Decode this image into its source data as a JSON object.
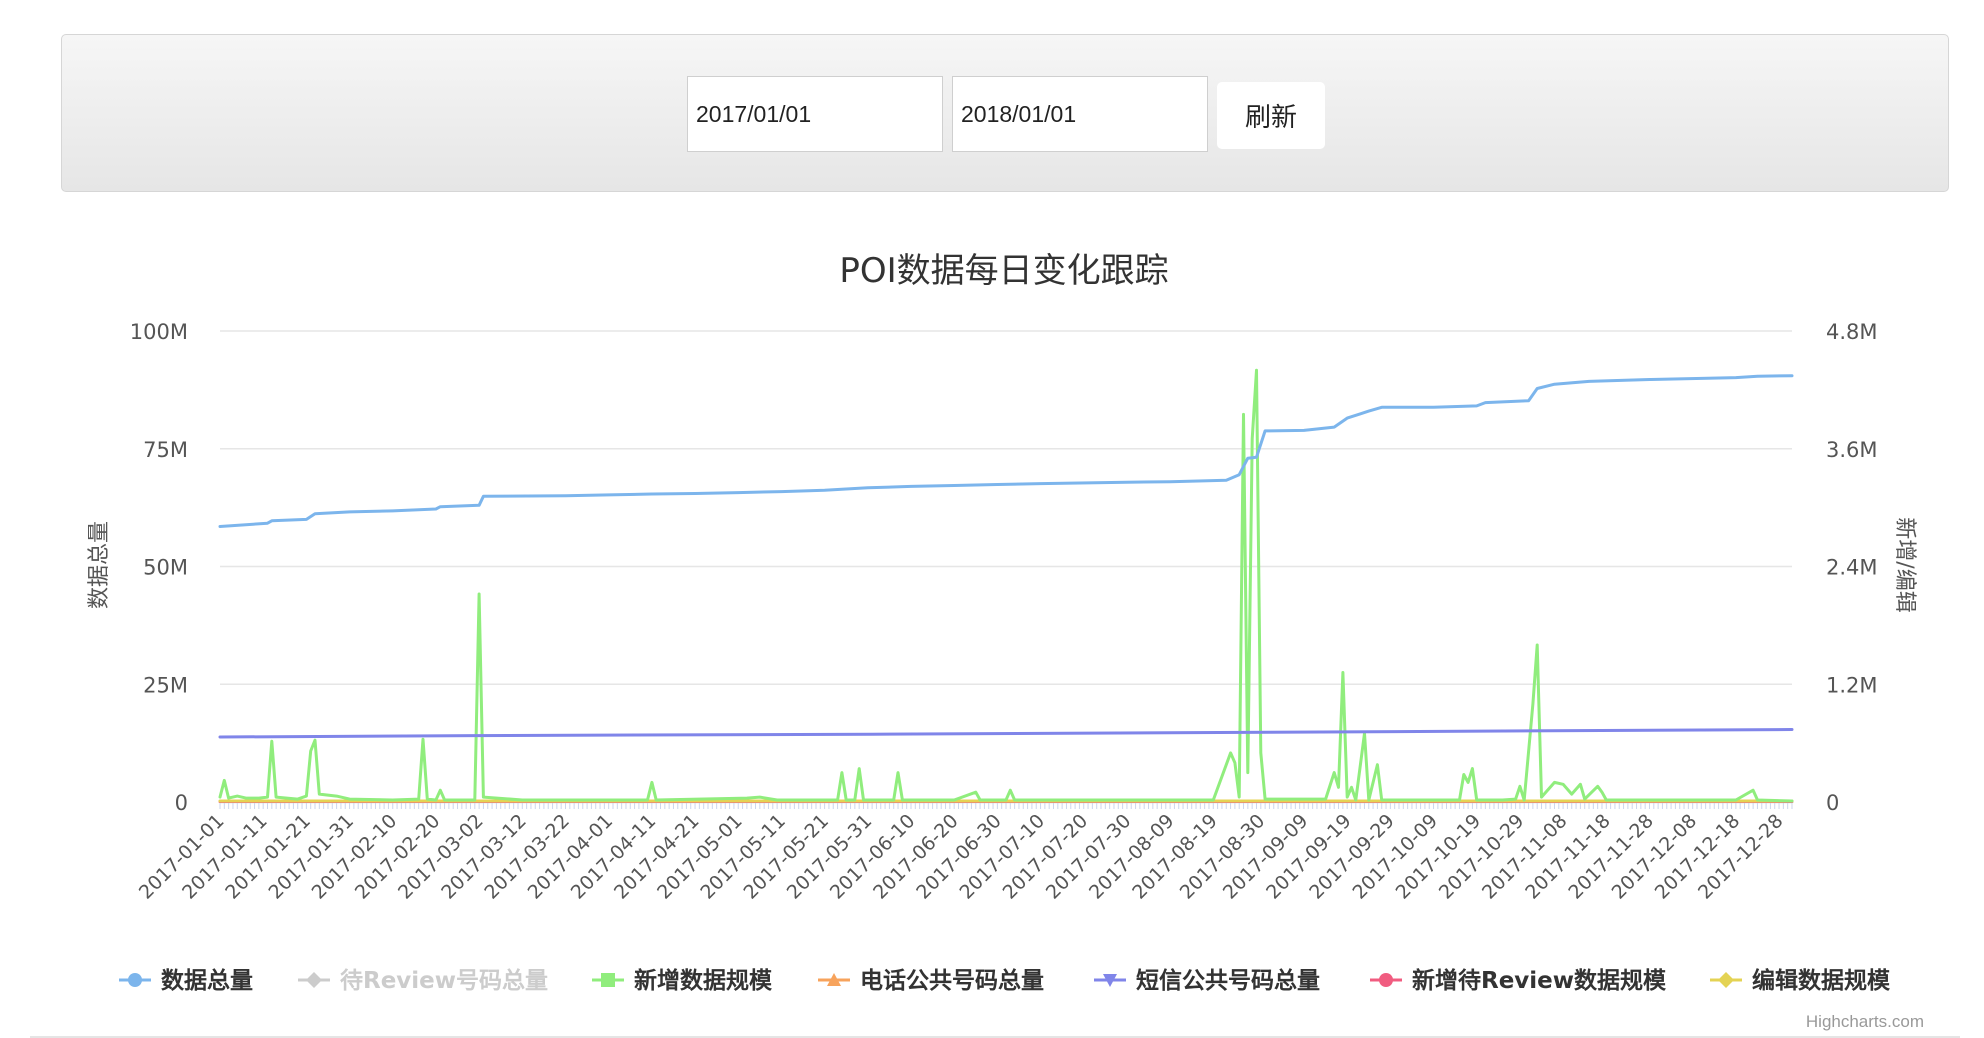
{
  "filters": {
    "start_date": "2017/01/01",
    "end_date": "2018/01/01",
    "refresh_label": "刷新"
  },
  "credits": "Highcharts.com",
  "colors": {
    "total": "#7cb5ec",
    "review": "#cccccc",
    "added": "#90ed7d",
    "phone": "#f7a35c",
    "sms": "#8085e9",
    "new_review": "#f15c80",
    "edit": "#e4d354"
  },
  "chart_data": {
    "type": "line",
    "title": "POI数据每日变化跟踪",
    "y_left": {
      "label": "数据总量",
      "ticks": [
        "0",
        "25M",
        "50M",
        "75M",
        "100M"
      ],
      "max": 100000000
    },
    "y_right": {
      "label": "新增/编辑",
      "ticks": [
        "0",
        "1.2M",
        "2.4M",
        "3.6M",
        "4.8M"
      ],
      "max": 4800000
    },
    "x_range": [
      "2017-01-01",
      "2017-12-31"
    ],
    "x_ticks": [
      "2017-01-01",
      "2017-01-11",
      "2017-01-21",
      "2017-01-31",
      "2017-02-10",
      "2017-02-20",
      "2017-03-02",
      "2017-03-12",
      "2017-03-22",
      "2017-04-01",
      "2017-04-11",
      "2017-04-21",
      "2017-05-01",
      "2017-05-11",
      "2017-05-21",
      "2017-05-31",
      "2017-06-10",
      "2017-06-20",
      "2017-06-30",
      "2017-07-10",
      "2017-07-20",
      "2017-07-30",
      "2017-08-09",
      "2017-08-19",
      "2017-08-30",
      "2017-09-09",
      "2017-09-19",
      "2017-09-29",
      "2017-10-09",
      "2017-10-19",
      "2017-10-29",
      "2017-11-08",
      "2017-11-18",
      "2017-11-28",
      "2017-12-08",
      "2017-12-18",
      "2017-12-28"
    ],
    "grid": true,
    "legend_position": "bottom",
    "series": [
      {
        "name": "数据总量",
        "axis": "left",
        "marker": "circle",
        "visible": true,
        "points": [
          [
            "2017-01-01",
            58.5
          ],
          [
            "2017-01-12",
            59.2
          ],
          [
            "2017-01-13",
            59.7
          ],
          [
            "2017-01-21",
            60.0
          ],
          [
            "2017-01-23",
            61.2
          ],
          [
            "2017-01-31",
            61.6
          ],
          [
            "2017-02-10",
            61.8
          ],
          [
            "2017-02-20",
            62.2
          ],
          [
            "2017-02-21",
            62.7
          ],
          [
            "2017-03-02",
            63.0
          ],
          [
            "2017-03-03",
            64.9
          ],
          [
            "2017-03-22",
            65.0
          ],
          [
            "2017-04-01",
            65.2
          ],
          [
            "2017-04-11",
            65.4
          ],
          [
            "2017-04-21",
            65.5
          ],
          [
            "2017-05-01",
            65.7
          ],
          [
            "2017-05-11",
            65.9
          ],
          [
            "2017-05-21",
            66.2
          ],
          [
            "2017-05-31",
            66.7
          ],
          [
            "2017-06-10",
            67.0
          ],
          [
            "2017-06-20",
            67.2
          ],
          [
            "2017-06-30",
            67.4
          ],
          [
            "2017-07-10",
            67.6
          ],
          [
            "2017-07-30",
            67.9
          ],
          [
            "2017-08-09",
            68.0
          ],
          [
            "2017-08-22",
            68.3
          ],
          [
            "2017-08-25",
            69.5
          ],
          [
            "2017-08-27",
            73.0
          ],
          [
            "2017-08-29",
            73.2
          ],
          [
            "2017-08-31",
            78.8
          ],
          [
            "2017-09-09",
            78.9
          ],
          [
            "2017-09-16",
            79.6
          ],
          [
            "2017-09-19",
            81.5
          ],
          [
            "2017-09-22",
            82.4
          ],
          [
            "2017-09-24",
            83.0
          ],
          [
            "2017-09-27",
            83.8
          ],
          [
            "2017-10-09",
            83.8
          ],
          [
            "2017-10-19",
            84.1
          ],
          [
            "2017-10-21",
            84.8
          ],
          [
            "2017-10-31",
            85.2
          ],
          [
            "2017-11-02",
            87.8
          ],
          [
            "2017-11-06",
            88.7
          ],
          [
            "2017-11-14",
            89.3
          ],
          [
            "2017-11-28",
            89.7
          ],
          [
            "2017-12-18",
            90.1
          ],
          [
            "2017-12-23",
            90.4
          ],
          [
            "2017-12-31",
            90.5
          ]
        ]
      },
      {
        "name": "待Review号码总量",
        "axis": "left",
        "marker": "diamond",
        "visible": false,
        "points": []
      },
      {
        "name": "新增数据规模",
        "axis": "right",
        "marker": "square",
        "visible": true,
        "points": [
          [
            "2017-01-01",
            0.05
          ],
          [
            "2017-01-02",
            0.22
          ],
          [
            "2017-01-03",
            0.04
          ],
          [
            "2017-01-05",
            0.06
          ],
          [
            "2017-01-07",
            0.04
          ],
          [
            "2017-01-10",
            0.04
          ],
          [
            "2017-01-12",
            0.05
          ],
          [
            "2017-01-13",
            0.62
          ],
          [
            "2017-01-14",
            0.05
          ],
          [
            "2017-01-19",
            0.03
          ],
          [
            "2017-01-21",
            0.06
          ],
          [
            "2017-01-22",
            0.52
          ],
          [
            "2017-01-23",
            0.63
          ],
          [
            "2017-01-24",
            0.08
          ],
          [
            "2017-01-28",
            0.06
          ],
          [
            "2017-01-31",
            0.03
          ],
          [
            "2017-02-10",
            0.02
          ],
          [
            "2017-02-16",
            0.03
          ],
          [
            "2017-02-17",
            0.64
          ],
          [
            "2017-02-18",
            0.03
          ],
          [
            "2017-02-20",
            0.02
          ],
          [
            "2017-02-21",
            0.12
          ],
          [
            "2017-02-22",
            0.02
          ],
          [
            "2017-03-01",
            0.02
          ],
          [
            "2017-03-02",
            2.12
          ],
          [
            "2017-03-03",
            0.05
          ],
          [
            "2017-03-12",
            0.02
          ],
          [
            "2017-04-10",
            0.02
          ],
          [
            "2017-04-11",
            0.2
          ],
          [
            "2017-04-12",
            0.02
          ],
          [
            "2017-05-03",
            0.04
          ],
          [
            "2017-05-06",
            0.05
          ],
          [
            "2017-05-10",
            0.02
          ],
          [
            "2017-05-24",
            0.02
          ],
          [
            "2017-05-25",
            0.3
          ],
          [
            "2017-05-26",
            0.02
          ],
          [
            "2017-05-28",
            0.02
          ],
          [
            "2017-05-29",
            0.34
          ],
          [
            "2017-05-30",
            0.02
          ],
          [
            "2017-06-06",
            0.02
          ],
          [
            "2017-06-07",
            0.3
          ],
          [
            "2017-06-08",
            0.02
          ],
          [
            "2017-06-20",
            0.02
          ],
          [
            "2017-06-25",
            0.1
          ],
          [
            "2017-06-26",
            0.02
          ],
          [
            "2017-07-02",
            0.02
          ],
          [
            "2017-07-03",
            0.12
          ],
          [
            "2017-07-04",
            0.02
          ],
          [
            "2017-07-20",
            0.02
          ],
          [
            "2017-08-19",
            0.02
          ],
          [
            "2017-08-23",
            0.5
          ],
          [
            "2017-08-24",
            0.4
          ],
          [
            "2017-08-25",
            0.05
          ],
          [
            "2017-08-26",
            3.95
          ],
          [
            "2017-08-27",
            0.3
          ],
          [
            "2017-08-28",
            3.7
          ],
          [
            "2017-08-29",
            4.4
          ],
          [
            "2017-08-30",
            0.5
          ],
          [
            "2017-08-31",
            0.03
          ],
          [
            "2017-09-14",
            0.03
          ],
          [
            "2017-09-16",
            0.3
          ],
          [
            "2017-09-17",
            0.15
          ],
          [
            "2017-09-18",
            1.32
          ],
          [
            "2017-09-19",
            0.05
          ],
          [
            "2017-09-20",
            0.15
          ],
          [
            "2017-09-21",
            0.02
          ],
          [
            "2017-09-23",
            0.7
          ],
          [
            "2017-09-24",
            0.02
          ],
          [
            "2017-09-26",
            0.38
          ],
          [
            "2017-09-27",
            0.02
          ],
          [
            "2017-10-15",
            0.02
          ],
          [
            "2017-10-16",
            0.28
          ],
          [
            "2017-10-17",
            0.2
          ],
          [
            "2017-10-18",
            0.34
          ],
          [
            "2017-10-19",
            0.02
          ],
          [
            "2017-10-25",
            0.02
          ],
          [
            "2017-10-28",
            0.03
          ],
          [
            "2017-10-29",
            0.16
          ],
          [
            "2017-10-30",
            0.02
          ],
          [
            "2017-11-01",
            1.0
          ],
          [
            "2017-11-02",
            1.6
          ],
          [
            "2017-11-03",
            0.05
          ],
          [
            "2017-11-06",
            0.2
          ],
          [
            "2017-11-08",
            0.18
          ],
          [
            "2017-11-10",
            0.08
          ],
          [
            "2017-11-12",
            0.18
          ],
          [
            "2017-11-13",
            0.03
          ],
          [
            "2017-11-16",
            0.16
          ],
          [
            "2017-11-17",
            0.1
          ],
          [
            "2017-11-18",
            0.02
          ],
          [
            "2017-12-05",
            0.02
          ],
          [
            "2017-12-18",
            0.02
          ],
          [
            "2017-12-22",
            0.12
          ],
          [
            "2017-12-23",
            0.02
          ],
          [
            "2017-12-31",
            0.01
          ]
        ]
      },
      {
        "name": "电话公共号码总量",
        "axis": "left",
        "marker": "triangle",
        "visible": true,
        "points": [
          [
            "2017-01-01",
            0.1
          ],
          [
            "2017-12-31",
            0.1
          ]
        ]
      },
      {
        "name": "短信公共号码总量",
        "axis": "left",
        "marker": "triangle-down",
        "visible": true,
        "points": [
          [
            "2017-01-01",
            13.8
          ],
          [
            "2017-03-01",
            14.1
          ],
          [
            "2017-06-01",
            14.4
          ],
          [
            "2017-09-01",
            14.8
          ],
          [
            "2017-12-31",
            15.4
          ]
        ]
      },
      {
        "name": "新增待Review数据规模",
        "axis": "right",
        "marker": "circle",
        "visible": true,
        "points": [
          [
            "2017-01-01",
            0.005
          ],
          [
            "2017-12-31",
            0.005
          ]
        ]
      },
      {
        "name": "编辑数据规模",
        "axis": "right",
        "marker": "diamond",
        "visible": true,
        "points": [
          [
            "2017-01-01",
            0.01
          ],
          [
            "2017-12-31",
            0.01
          ]
        ]
      }
    ]
  }
}
